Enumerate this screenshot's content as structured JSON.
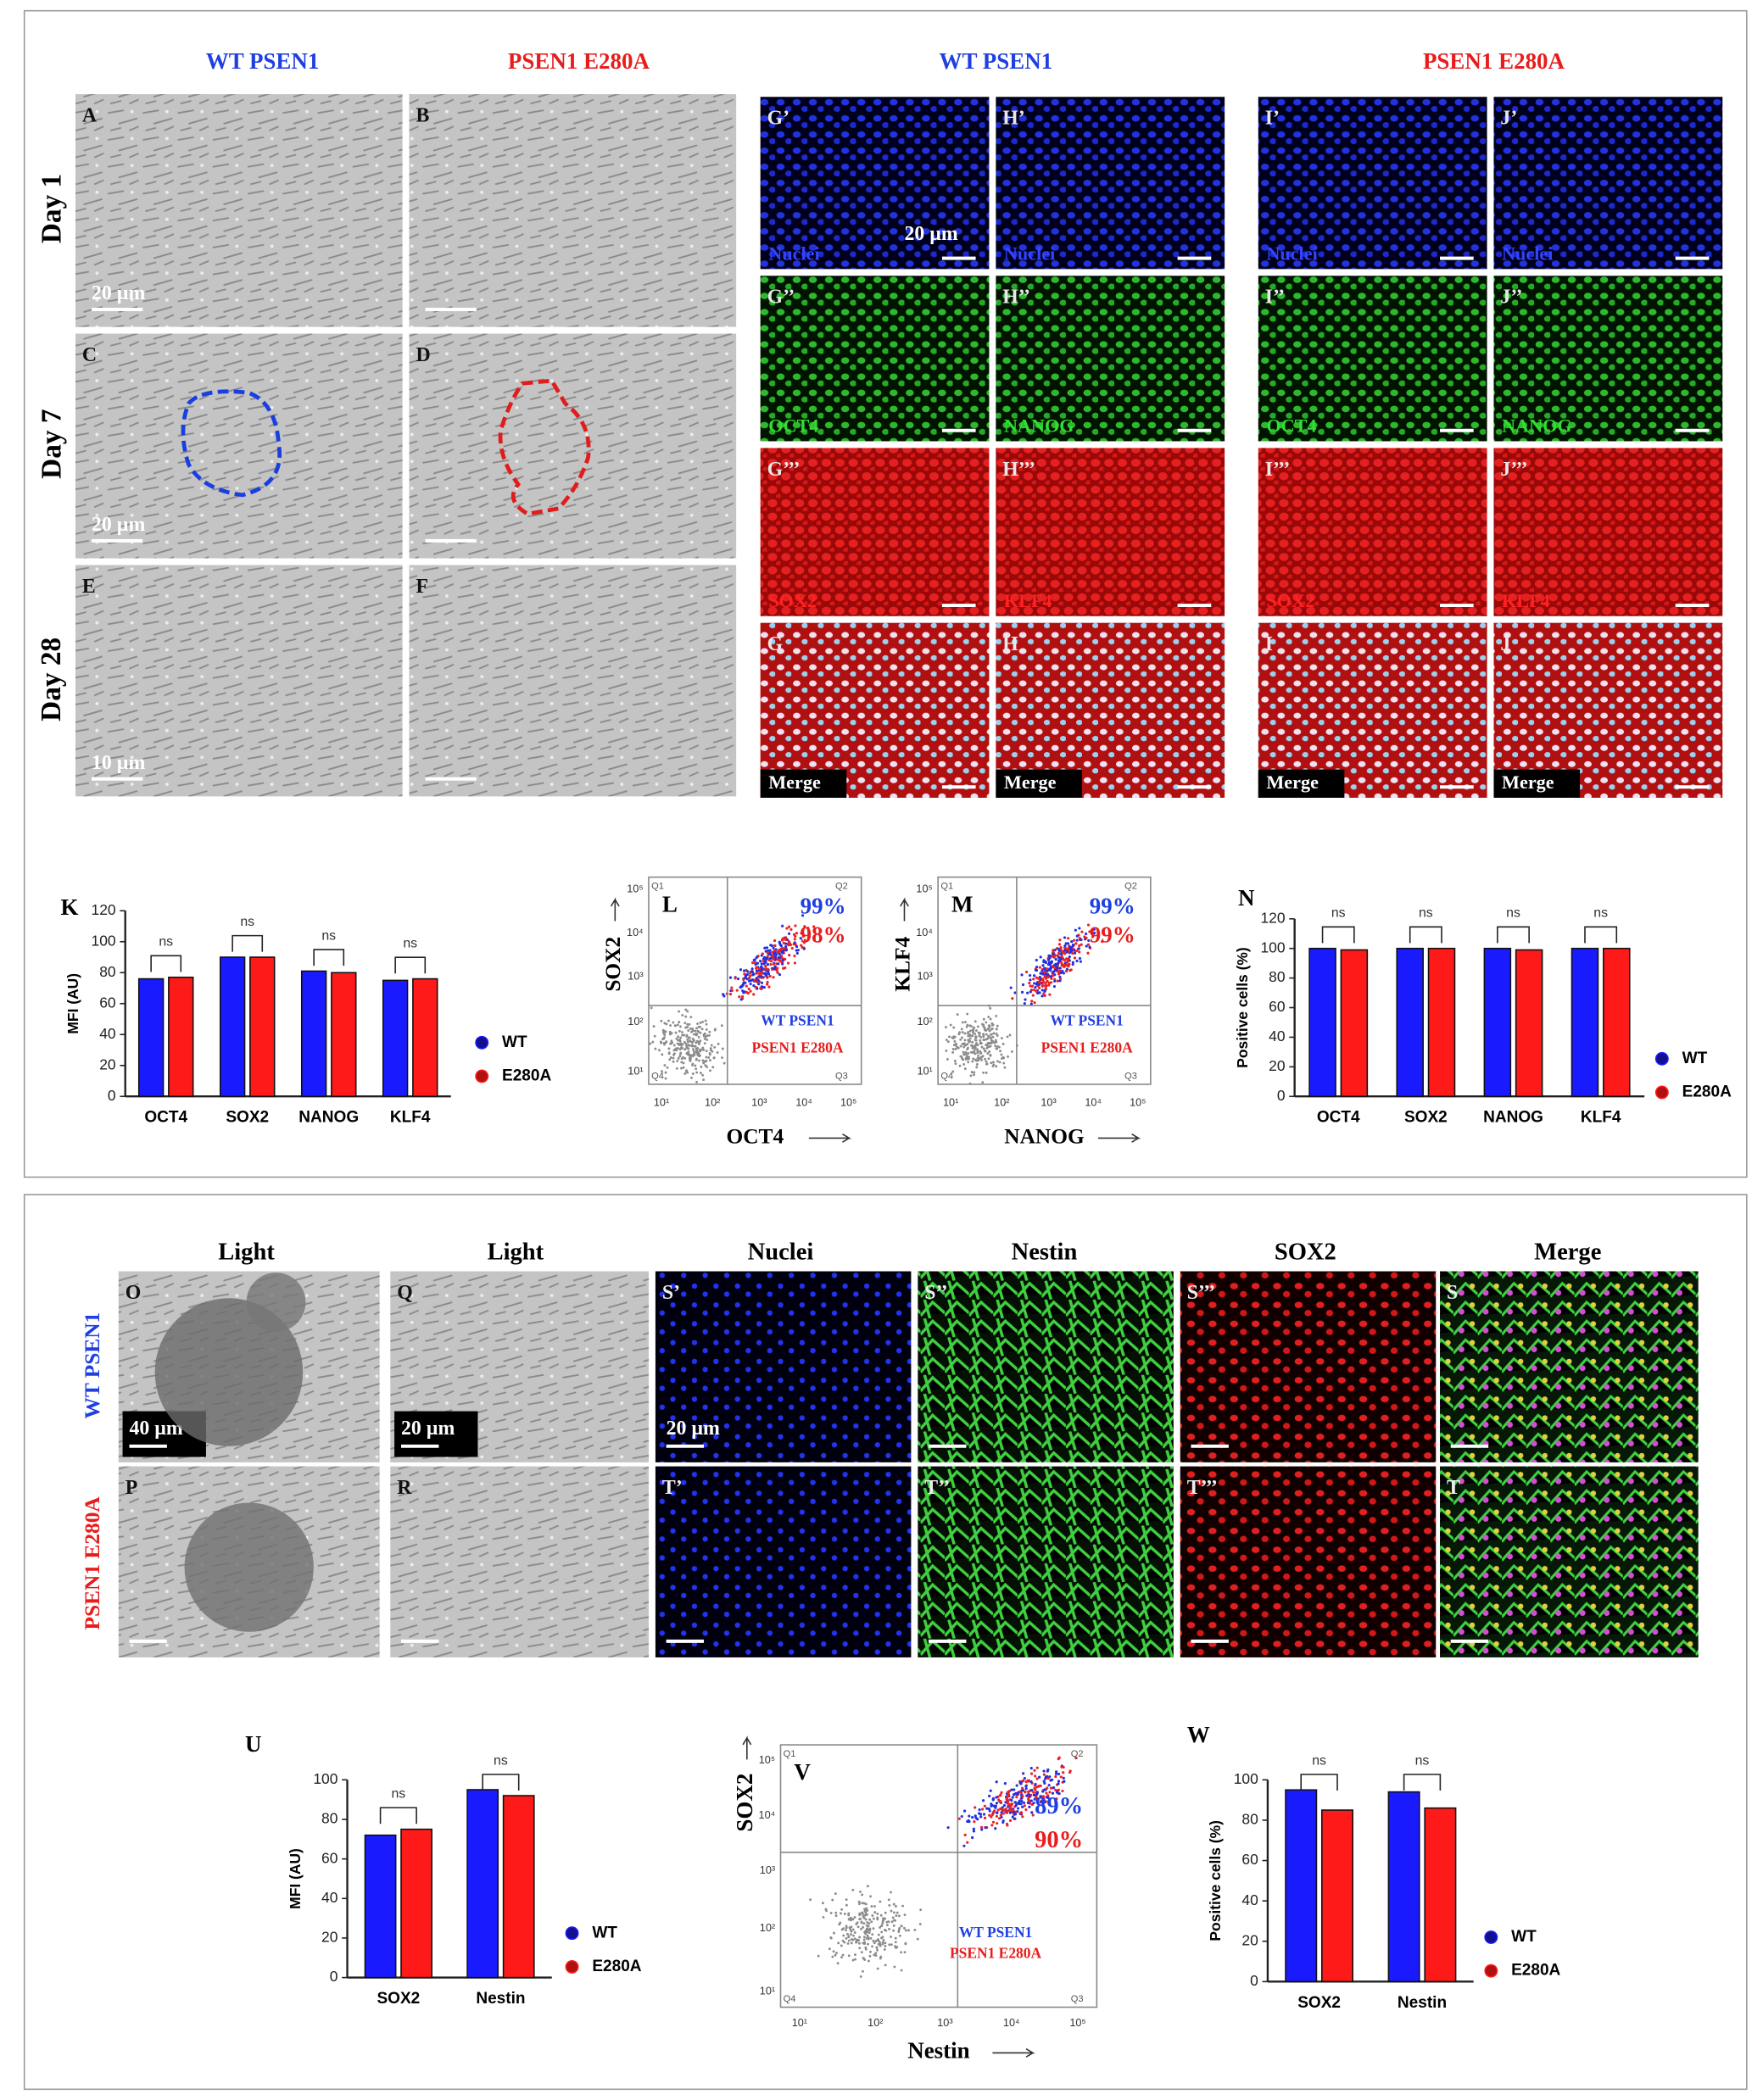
{
  "top_headers": [
    "WT PSEN1",
    "PSEN1 E280A",
    "WT PSEN1",
    "PSEN1 E280A"
  ],
  "day_labels": [
    "Day 1",
    "Day 7",
    "Day 28"
  ],
  "light_panels": [
    [
      "A",
      "B"
    ],
    [
      "C",
      "D"
    ],
    [
      "E",
      "F"
    ]
  ],
  "light_scale_labels": [
    "20 µm",
    "20 µm",
    "10 µm"
  ],
  "fluor_panel_labels": [
    [
      "G’",
      "H’",
      "I’",
      "J’"
    ],
    [
      "G’’",
      "H’’",
      "I’’",
      "J’’"
    ],
    [
      "G’’’",
      "H’’’",
      "I’’’",
      "J’’’"
    ],
    [
      "G",
      "H",
      "I",
      "J"
    ]
  ],
  "fluor_channels": [
    [
      "Nuclei",
      "Nuclei",
      "Nuclei",
      "Nuclei"
    ],
    [
      "OCT4",
      "NANOG",
      "OCT4",
      "NANOG"
    ],
    [
      "SOX2",
      "KLF4",
      "SOX2",
      "KLF4"
    ],
    [
      "Merge",
      "Merge",
      "Merge",
      "Merge"
    ]
  ],
  "fluor_scale_label": "20 µm",
  "flow_plots": [
    {
      "title": "L",
      "y_label": "SOX2",
      "x_label": "OCT4",
      "percents": [
        "99%",
        "98%"
      ],
      "legend": [
        "WT PSEN1",
        "PSEN1 E280A"
      ],
      "quadrants": [
        "Q1",
        "Q2",
        "Q3",
        "Q4"
      ],
      "axis_ticks": [
        "10¹",
        "10²",
        "10³",
        "10⁴",
        "10⁵"
      ]
    },
    {
      "title": "M",
      "y_label": "KLF4",
      "x_label": "NANOG",
      "percents": [
        "99%",
        "99%"
      ],
      "legend": [
        "WT PSEN1",
        "PSEN1 E280A"
      ],
      "quadrants": [
        "Q1",
        "Q2",
        "Q3",
        "Q4"
      ],
      "axis_ticks": [
        "10¹",
        "10²",
        "10³",
        "10⁴",
        "10⁵"
      ]
    },
    {
      "title": "V",
      "y_label": "SOX2",
      "x_label": "Nestin",
      "percents": [
        "89%",
        "90%"
      ],
      "legend": [
        "WT PSEN1",
        "PSEN1 E280A"
      ],
      "quadrants": [
        "Q1",
        "Q2",
        "Q3",
        "Q4"
      ],
      "axis_ticks": [
        "10¹",
        "10²",
        "10³",
        "10⁴",
        "10⁵"
      ]
    }
  ],
  "bottom_headers": [
    "Light",
    "Light",
    "Nuclei",
    "Nestin",
    "SOX2",
    "Merge"
  ],
  "bottom_row_labels": [
    "WT PSEN1",
    "PSEN1 E280A"
  ],
  "bottom_panels": [
    [
      "O",
      "Q",
      "S’",
      "S’’",
      "S’’’",
      "S"
    ],
    [
      "P",
      "R",
      "T’",
      "T’’",
      "T’’’",
      "T"
    ]
  ],
  "bottom_scale_labels": [
    "40 µm",
    "20 µm",
    "20 µm"
  ],
  "chart_data": [
    {
      "type": "bar",
      "title": "K",
      "y_label": "MFI (AU)",
      "categories": [
        "OCT4",
        "SOX2",
        "NANOG",
        "KLF4"
      ],
      "series": [
        {
          "name": "WT",
          "color": "#1a1aff",
          "values": [
            76,
            90,
            81,
            75
          ]
        },
        {
          "name": "E280A",
          "color": "#ff1a1a",
          "values": [
            77,
            90,
            80,
            76
          ]
        }
      ],
      "ylim": [
        0,
        120
      ],
      "yticks": [
        0,
        20,
        40,
        60,
        80,
        100,
        120
      ],
      "annotations": [
        "ns",
        "ns",
        "ns",
        "ns"
      ]
    },
    {
      "type": "bar",
      "title": "N",
      "y_label": "Positive cells (%)",
      "categories": [
        "OCT4",
        "SOX2",
        "NANOG",
        "KLF4"
      ],
      "series": [
        {
          "name": "WT",
          "color": "#1a1aff",
          "values": [
            100,
            100,
            100,
            100
          ]
        },
        {
          "name": "E280A",
          "color": "#ff1a1a",
          "values": [
            99,
            100,
            99,
            100
          ]
        }
      ],
      "ylim": [
        0,
        120
      ],
      "yticks": [
        0,
        20,
        40,
        60,
        80,
        100,
        120
      ],
      "annotations": [
        "ns",
        "ns",
        "ns",
        "ns"
      ]
    },
    {
      "type": "bar",
      "title": "U",
      "y_label": "MFI (AU)",
      "categories": [
        "SOX2",
        "Nestin"
      ],
      "series": [
        {
          "name": "WT",
          "color": "#1a1aff",
          "values": [
            72,
            95
          ]
        },
        {
          "name": "E280A",
          "color": "#ff1a1a",
          "values": [
            75,
            92
          ]
        }
      ],
      "ylim": [
        0,
        100
      ],
      "yticks": [
        0,
        20,
        40,
        60,
        80,
        100
      ],
      "annotations": [
        "ns",
        "ns"
      ]
    },
    {
      "type": "bar",
      "title": "W",
      "y_label": "Positive cells (%)",
      "categories": [
        "SOX2",
        "Nestin"
      ],
      "series": [
        {
          "name": "WT",
          "color": "#1a1aff",
          "values": [
            95,
            94
          ]
        },
        {
          "name": "E280A",
          "color": "#ff1a1a",
          "values": [
            85,
            86
          ]
        }
      ],
      "ylim": [
        0,
        100
      ],
      "yticks": [
        0,
        20,
        40,
        60,
        80,
        100
      ],
      "annotations": [
        "ns",
        "ns"
      ]
    }
  ]
}
